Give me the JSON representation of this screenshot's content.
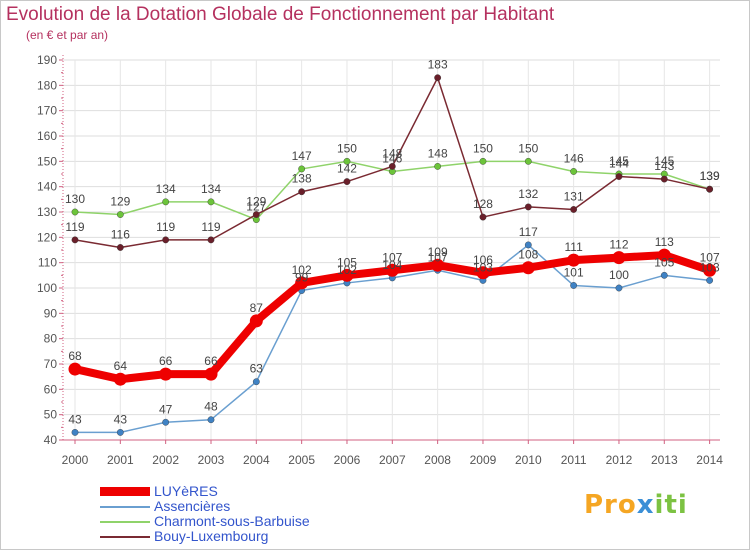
{
  "title": "Evolution de la Dotation Globale de Fonctionnement par Habitant",
  "subtitle": "(en € et par an)",
  "logo": {
    "text": "Proxiti",
    "colors": [
      "#f5a623",
      "#3b8fd6",
      "#7cc242"
    ]
  },
  "chart_data": {
    "type": "line",
    "title": "Evolution de la Dotation Globale de Fonctionnement par Habitant",
    "ylabel": "(en € et par an)",
    "xlabel": "",
    "x": [
      "2000",
      "2001",
      "2002",
      "2003",
      "2004",
      "2005",
      "2006",
      "2007",
      "2008",
      "2009",
      "2010",
      "2011",
      "2012",
      "2013",
      "2014"
    ],
    "ylim": [
      40,
      190
    ],
    "yticks": [
      40,
      50,
      60,
      70,
      80,
      90,
      100,
      110,
      120,
      130,
      140,
      150,
      160,
      170,
      180,
      190
    ],
    "grid": true,
    "legend": "bottom-left",
    "series": [
      {
        "name": "Charmont-sous-Barbuise",
        "color": "#8fd36a",
        "marker": "#6cc43a",
        "values": [
          130,
          129,
          134,
          134,
          127,
          147,
          150,
          146,
          148,
          150,
          150,
          146,
          145,
          145,
          139
        ]
      },
      {
        "name": "Bouy-Luxembourg",
        "color": "#7a2a32",
        "marker": "#6a1f2a",
        "values": [
          119,
          116,
          119,
          119,
          129,
          138,
          142,
          148,
          183,
          128,
          132,
          131,
          144,
          143,
          139
        ]
      },
      {
        "name": "Assencières",
        "color": "#6a9fd0",
        "marker": "#3f82c4",
        "values": [
          43,
          43,
          47,
          48,
          63,
          99,
          102,
          104,
          107,
          103,
          117,
          101,
          100,
          105,
          103
        ]
      },
      {
        "name": "LUYèRES",
        "color": "#ee0000",
        "marker": "#ee0000",
        "values": [
          68,
          64,
          66,
          66,
          87,
          102,
          105,
          107,
          109,
          106,
          108,
          111,
          112,
          113,
          107
        ]
      }
    ]
  },
  "legend_items": [
    {
      "label": "LUYèRES",
      "color": "#ee0000"
    },
    {
      "label": "Assencières",
      "color": "#6a9fd0"
    },
    {
      "label": "Charmont-sous-Barbuise",
      "color": "#8fd36a"
    },
    {
      "label": "Bouy-Luxembourg",
      "color": "#7a2a32"
    }
  ]
}
